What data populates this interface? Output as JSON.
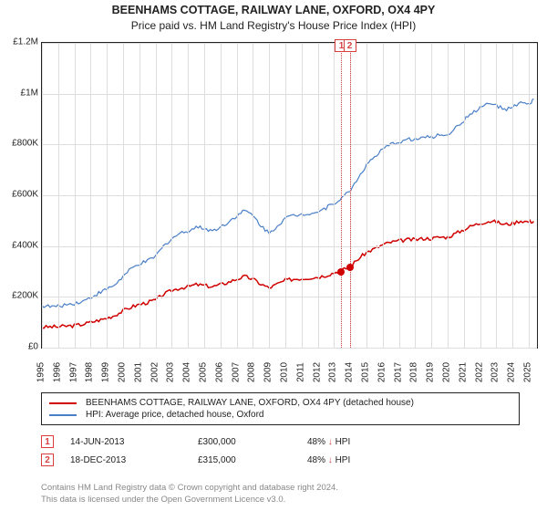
{
  "title": "BEENHAMS COTTAGE, RAILWAY LANE, OXFORD, OX4 4PY",
  "subtitle": "Price paid vs. HM Land Registry's House Price Index (HPI)",
  "chart": {
    "type": "line",
    "background_color": "#ffffff",
    "grid_color": "#dddddd",
    "border_color": "#222222",
    "x_years": [
      1995,
      1996,
      1997,
      1998,
      1999,
      2000,
      2001,
      2002,
      2003,
      2004,
      2005,
      2006,
      2007,
      2008,
      2009,
      2010,
      2011,
      2012,
      2013,
      2014,
      2015,
      2016,
      2017,
      2018,
      2019,
      2020,
      2021,
      2022,
      2023,
      2024,
      2025
    ],
    "y_ticks": [
      0,
      200000,
      400000,
      600000,
      800000,
      1000000,
      1200000
    ],
    "y_tick_labels": [
      "£0",
      "£200K",
      "£400K",
      "£600K",
      "£800K",
      "£1M",
      "£1.2M"
    ],
    "x_domain": [
      1995,
      2025.5
    ],
    "y_domain": [
      0,
      1200000
    ],
    "series": [
      {
        "name": "subject_property",
        "label": "BEENHAMS COTTAGE, RAILWAY LANE, OXFORD, OX4 4PY (detached house)",
        "color": "#d00000",
        "line_width": 1.5,
        "points": [
          [
            1995,
            80000
          ],
          [
            1995.5,
            82000
          ],
          [
            1996,
            82000
          ],
          [
            1996.5,
            85000
          ],
          [
            1997,
            87000
          ],
          [
            1997.5,
            92000
          ],
          [
            1998,
            100000
          ],
          [
            1998.5,
            108000
          ],
          [
            1999,
            116000
          ],
          [
            1999.5,
            128000
          ],
          [
            2000,
            145000
          ],
          [
            2000.5,
            160000
          ],
          [
            2001,
            170000
          ],
          [
            2001.5,
            178000
          ],
          [
            2002,
            188000
          ],
          [
            2002.5,
            210000
          ],
          [
            2003,
            225000
          ],
          [
            2003.5,
            235000
          ],
          [
            2004,
            240000
          ],
          [
            2004.5,
            248000
          ],
          [
            2005,
            245000
          ],
          [
            2005.5,
            240000
          ],
          [
            2006,
            248000
          ],
          [
            2006.5,
            258000
          ],
          [
            2007,
            270000
          ],
          [
            2007.5,
            280000
          ],
          [
            2008,
            270000
          ],
          [
            2008.5,
            250000
          ],
          [
            2009,
            235000
          ],
          [
            2009.5,
            250000
          ],
          [
            2010,
            265000
          ],
          [
            2010.5,
            270000
          ],
          [
            2011,
            272000
          ],
          [
            2011.5,
            275000
          ],
          [
            2012,
            278000
          ],
          [
            2012.5,
            285000
          ],
          [
            2013,
            295000
          ],
          [
            2013.5,
            305000
          ],
          [
            2014,
            320000
          ],
          [
            2014.5,
            350000
          ],
          [
            2015,
            375000
          ],
          [
            2015.5,
            390000
          ],
          [
            2016,
            405000
          ],
          [
            2016.5,
            415000
          ],
          [
            2017,
            420000
          ],
          [
            2017.5,
            425000
          ],
          [
            2018,
            425000
          ],
          [
            2018.5,
            430000
          ],
          [
            2019,
            430000
          ],
          [
            2019.5,
            435000
          ],
          [
            2020,
            435000
          ],
          [
            2020.5,
            450000
          ],
          [
            2021,
            465000
          ],
          [
            2021.5,
            480000
          ],
          [
            2022,
            490000
          ],
          [
            2022.5,
            498000
          ],
          [
            2023,
            495000
          ],
          [
            2023.5,
            485000
          ],
          [
            2024,
            490000
          ],
          [
            2024.5,
            500000
          ],
          [
            2025,
            495000
          ],
          [
            2025.3,
            498000
          ]
        ]
      },
      {
        "name": "hpi_oxford",
        "label": "HPI: Average price, detached house, Oxford",
        "color": "#4a7fc8",
        "line_width": 1.2,
        "points": [
          [
            1995,
            165000
          ],
          [
            1995.5,
            162000
          ],
          [
            1996,
            162000
          ],
          [
            1996.5,
            170000
          ],
          [
            1997,
            175000
          ],
          [
            1997.5,
            182000
          ],
          [
            1998,
            198000
          ],
          [
            1998.5,
            215000
          ],
          [
            1999,
            230000
          ],
          [
            1999.5,
            248000
          ],
          [
            2000,
            280000
          ],
          [
            2000.5,
            310000
          ],
          [
            2001,
            330000
          ],
          [
            2001.5,
            340000
          ],
          [
            2002,
            360000
          ],
          [
            2002.5,
            400000
          ],
          [
            2003,
            430000
          ],
          [
            2003.5,
            450000
          ],
          [
            2004,
            460000
          ],
          [
            2004.5,
            475000
          ],
          [
            2005,
            470000
          ],
          [
            2005.5,
            460000
          ],
          [
            2006,
            475000
          ],
          [
            2006.5,
            495000
          ],
          [
            2007,
            520000
          ],
          [
            2007.5,
            540000
          ],
          [
            2008,
            520000
          ],
          [
            2008.5,
            480000
          ],
          [
            2009,
            450000
          ],
          [
            2009.5,
            480000
          ],
          [
            2010,
            510000
          ],
          [
            2010.5,
            520000
          ],
          [
            2011,
            525000
          ],
          [
            2011.5,
            530000
          ],
          [
            2012,
            535000
          ],
          [
            2012.5,
            550000
          ],
          [
            2013,
            570000
          ],
          [
            2013.5,
            590000
          ],
          [
            2014,
            620000
          ],
          [
            2014.5,
            670000
          ],
          [
            2015,
            720000
          ],
          [
            2015.5,
            750000
          ],
          [
            2016,
            780000
          ],
          [
            2016.5,
            800000
          ],
          [
            2017,
            810000
          ],
          [
            2017.5,
            820000
          ],
          [
            2018,
            820000
          ],
          [
            2018.5,
            828000
          ],
          [
            2019,
            828000
          ],
          [
            2019.5,
            838000
          ],
          [
            2020,
            840000
          ],
          [
            2020.5,
            865000
          ],
          [
            2021,
            895000
          ],
          [
            2021.5,
            925000
          ],
          [
            2022,
            945000
          ],
          [
            2022.5,
            960000
          ],
          [
            2023,
            955000
          ],
          [
            2023.5,
            935000
          ],
          [
            2024,
            945000
          ],
          [
            2024.5,
            965000
          ],
          [
            2025,
            955000
          ],
          [
            2025.3,
            980000
          ]
        ]
      }
    ],
    "reference_lines": [
      {
        "x": 2013.45,
        "label": "1",
        "color": "#d84040"
      },
      {
        "x": 2013.96,
        "label": "2",
        "color": "#d84040"
      }
    ],
    "sale_markers": [
      {
        "x": 2013.45,
        "y": 300000,
        "color": "#d00000"
      },
      {
        "x": 2013.96,
        "y": 315000,
        "color": "#d00000"
      }
    ]
  },
  "sales": [
    {
      "badge": "1",
      "date": "14-JUN-2013",
      "price": "£300,000",
      "delta_pct": "48%",
      "arrow": "↓",
      "suffix": "HPI"
    },
    {
      "badge": "2",
      "date": "18-DEC-2013",
      "price": "£315,000",
      "delta_pct": "48%",
      "arrow": "↓",
      "suffix": "HPI"
    }
  ],
  "attribution": {
    "line1": "Contains HM Land Registry data © Crown copyright and database right 2024.",
    "line2": "This data is licensed under the Open Government Licence v3.0."
  }
}
